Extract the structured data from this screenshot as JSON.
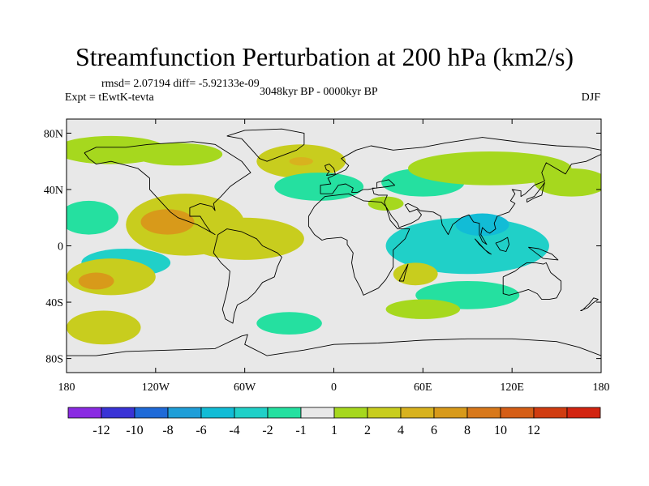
{
  "title": "Streamfunction Perturbation at 200 hPa (km2/s)",
  "stats": "rmsd= 2.07194  diff= -5.92133e-09",
  "experiment": "Expt = tEwtK-tevta",
  "period": "3048kyr BP - 0000kyr BP",
  "season": "DJF",
  "axes": {
    "lat_ticks": [
      {
        "label": "80N",
        "value": 80
      },
      {
        "label": "40N",
        "value": 40
      },
      {
        "label": "0",
        "value": 0
      },
      {
        "label": "40S",
        "value": -40
      },
      {
        "label": "80S",
        "value": -80
      }
    ],
    "lon_ticks": [
      {
        "label": "180",
        "value": -180
      },
      {
        "label": "120W",
        "value": -120
      },
      {
        "label": "60W",
        "value": -60
      },
      {
        "label": "0",
        "value": 0
      },
      {
        "label": "60E",
        "value": 60
      },
      {
        "label": "120E",
        "value": 120
      },
      {
        "label": "180",
        "value": 180
      }
    ],
    "lon_range": [
      -180,
      180
    ],
    "lat_range": [
      -90,
      90
    ]
  },
  "colorbar": {
    "colors": [
      "#8a2be2",
      "#3a33d6",
      "#1f6ad8",
      "#1f9ed8",
      "#12bcd6",
      "#20d0c8",
      "#25e0a0",
      "#e8e8e8",
      "#a6d81e",
      "#c8cd1e",
      "#d8b21e",
      "#d89a1a",
      "#d8781a",
      "#d55e16",
      "#d03c10",
      "#d22410"
    ],
    "labels": [
      "-12",
      "-10",
      "-8",
      "-6",
      "-4",
      "-2",
      "-1",
      "1",
      "2",
      "4",
      "6",
      "8",
      "10",
      "12"
    ]
  },
  "field_anomalies": [
    {
      "label": "North Pacific positive",
      "lon": -150,
      "lat": 68,
      "rlon": 38,
      "rlat": 10,
      "value": 1.5
    },
    {
      "label": "North America positive",
      "lon": -105,
      "lat": 65,
      "rlon": 30,
      "rlat": 8,
      "value": 1.5
    },
    {
      "label": "North Atlantic positive",
      "lon": -22,
      "lat": 60,
      "rlon": 30,
      "rlat": 12,
      "value": 2.5
    },
    {
      "label": "North Atlantic peak",
      "lon": -22,
      "lat": 60,
      "rlon": 8,
      "rlat": 3,
      "value": 5
    },
    {
      "label": "Eurasia negative",
      "lon": -10,
      "lat": 42,
      "rlon": 30,
      "rlat": 10,
      "value": -1.5
    },
    {
      "label": "Central Asia negative",
      "lon": 60,
      "lat": 45,
      "rlon": 28,
      "rlat": 10,
      "value": -1.5
    },
    {
      "label": "East Asia positive",
      "lon": 105,
      "lat": 55,
      "rlon": 55,
      "rlat": 12,
      "value": 1.5
    },
    {
      "label": "North Pacific positive east",
      "lon": 160,
      "lat": 45,
      "rlon": 25,
      "rlat": 10,
      "value": 1.5
    },
    {
      "label": "Mexico positive",
      "lon": -100,
      "lat": 15,
      "rlon": 40,
      "rlat": 22,
      "value": 3
    },
    {
      "label": "Mexico peak",
      "lon": -112,
      "lat": 17,
      "rlon": 18,
      "rlat": 9,
      "value": 7
    },
    {
      "label": "Caribbean positive",
      "lon": -60,
      "lat": 5,
      "rlon": 40,
      "rlat": 15,
      "value": 2.5
    },
    {
      "label": "Equatorial Pacific negative",
      "lon": -165,
      "lat": 20,
      "rlon": 20,
      "rlat": 12,
      "value": -2
    },
    {
      "label": "Indian Ocean negative",
      "lon": 90,
      "lat": 0,
      "rlon": 55,
      "rlat": 20,
      "value": -3
    },
    {
      "label": "South Asia negative core",
      "lon": 100,
      "lat": 15,
      "rlon": 18,
      "rlat": 8,
      "value": -5
    },
    {
      "label": "Arabia positive",
      "lon": 35,
      "lat": 30,
      "rlon": 12,
      "rlat": 5,
      "value": 1.5
    },
    {
      "label": "SE Pacific negative",
      "lon": -140,
      "lat": -12,
      "rlon": 30,
      "rlat": 10,
      "value": -3
    },
    {
      "label": "South Pacific positive",
      "lon": -150,
      "lat": -22,
      "rlon": 30,
      "rlat": 13,
      "value": 3
    },
    {
      "label": "South Pacific peak",
      "lon": -160,
      "lat": -25,
      "rlon": 12,
      "rlat": 6,
      "value": 6
    },
    {
      "label": "Southern Ocean positive",
      "lon": -155,
      "lat": -58,
      "rlon": 25,
      "rlat": 12,
      "value": 2
    },
    {
      "label": "S Atlantic negative",
      "lon": -30,
      "lat": -55,
      "rlon": 22,
      "rlat": 8,
      "value": -2
    },
    {
      "label": "Madagascar positive",
      "lon": 55,
      "lat": -20,
      "rlon": 15,
      "rlat": 8,
      "value": 2
    },
    {
      "label": "S Indian negative",
      "lon": 90,
      "lat": -35,
      "rlon": 35,
      "rlat": 10,
      "value": -2
    },
    {
      "label": "S Indian positive",
      "lon": 60,
      "lat": -45,
      "rlon": 25,
      "rlat": 7,
      "value": 1.5
    }
  ]
}
